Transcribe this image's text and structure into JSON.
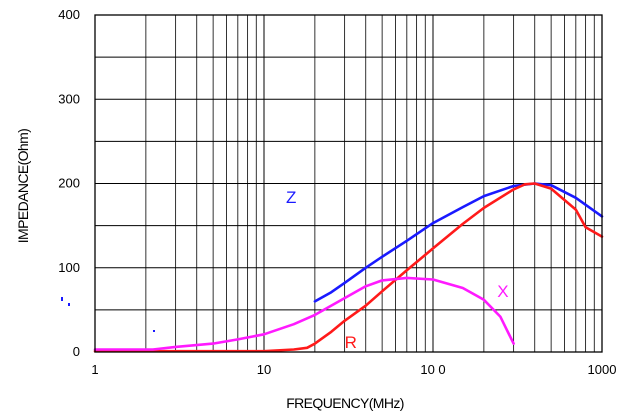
{
  "chart_data": {
    "type": "line",
    "title": "",
    "xlabel": "FREQUENCY(MHz)",
    "ylabel": "IMPEDANCE(Ohm)",
    "x_scale": "log",
    "xlim": [
      1,
      1000
    ],
    "ylim": [
      0,
      400
    ],
    "x_ticks": [
      "1",
      "10",
      "10 0",
      "1000"
    ],
    "x_tick_values": [
      1,
      10,
      100,
      1000
    ],
    "y_ticks": [
      "0",
      "100",
      "200",
      "300",
      "400"
    ],
    "y_tick_values": [
      0,
      100,
      200,
      300,
      400
    ],
    "grid": true,
    "legend": "inline-labels",
    "series": [
      {
        "name": "Z",
        "color": "#1a1aff",
        "label_at": [
          13.5,
          177
        ],
        "x": [
          20,
          25,
          30,
          40,
          50,
          70,
          100,
          150,
          200,
          300,
          400,
          500,
          700,
          1000
        ],
        "values": [
          60,
          71,
          82,
          100,
          113,
          132,
          153,
          172,
          185,
          197,
          200,
          198,
          183,
          161
        ]
      },
      {
        "name": "R",
        "color": "#ff1a1a",
        "label_at": [
          30,
          5
        ],
        "x": [
          1,
          5,
          10,
          15,
          18,
          20,
          25,
          30,
          40,
          50,
          70,
          100,
          150,
          200,
          300,
          350,
          400,
          500,
          700,
          800,
          1000
        ],
        "values": [
          1,
          1,
          1,
          3,
          5,
          10,
          24,
          37,
          55,
          72,
          97,
          123,
          152,
          171,
          193,
          199,
          200,
          194,
          169,
          148,
          137
        ]
      },
      {
        "name": "X",
        "color": "#ff1aff",
        "label_at": [
          240,
          65
        ],
        "x": [
          1,
          2.2,
          3,
          5,
          7,
          10,
          15,
          20,
          30,
          40,
          50,
          70,
          100,
          150,
          200,
          250,
          300
        ],
        "values": [
          3,
          3,
          6,
          10,
          15,
          21,
          33,
          44,
          64,
          78,
          85,
          88,
          86,
          76,
          62,
          42,
          10
        ]
      }
    ]
  }
}
